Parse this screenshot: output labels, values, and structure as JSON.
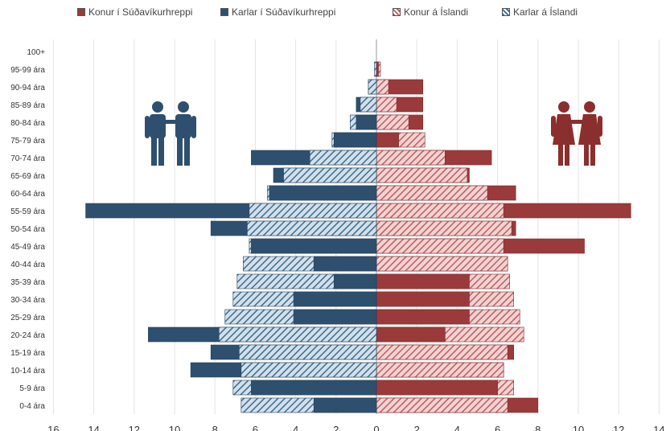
{
  "chart_data": {
    "type": "bar",
    "orientation": "horizontal-population-pyramid",
    "categories": [
      "0-4 ára",
      "5-9 ára",
      "10-14 ára",
      "15-19 ára",
      "20-24 ára",
      "25-29 ára",
      "30-34 ára",
      "35-39 ára",
      "40-44 ára",
      "45-49 ára",
      "50-54 ára",
      "55-59 ára",
      "60-64 ára",
      "65-69 ára",
      "70-74 ára",
      "75-79 ára",
      "80-84 ára",
      "85-89 ára",
      "90-94 ára",
      "95-99 ára",
      "100+"
    ],
    "series": [
      {
        "name": "Konur í Súðavíkurhreppi",
        "side": "right",
        "color": "#9b3a3a",
        "values": [
          8.0,
          6.0,
          6.3,
          6.8,
          3.4,
          4.6,
          4.6,
          4.6,
          6.5,
          10.3,
          6.9,
          12.6,
          6.9,
          4.6,
          5.7,
          1.1,
          2.3,
          2.3,
          2.3,
          0.1,
          0.0
        ]
      },
      {
        "name": "Karlar í Súðavíkurhreppi",
        "side": "left",
        "color": "#2f4f6f",
        "values": [
          3.1,
          6.2,
          9.2,
          8.2,
          11.3,
          4.1,
          4.1,
          2.1,
          3.1,
          6.2,
          8.2,
          14.4,
          5.3,
          5.1,
          6.2,
          2.1,
          1.0,
          1.0,
          0.4,
          0.0,
          0.0
        ]
      },
      {
        "name": "Konur á Íslandi",
        "side": "right",
        "color": "#c85a5a",
        "values": [
          6.5,
          6.8,
          6.3,
          6.5,
          7.3,
          7.1,
          6.8,
          6.6,
          6.5,
          6.3,
          6.7,
          6.3,
          5.5,
          4.5,
          3.4,
          2.4,
          1.6,
          1.0,
          0.6,
          0.2,
          0.0
        ]
      },
      {
        "name": "Karlar á Íslandi",
        "side": "left",
        "color": "#3d6b8f",
        "values": [
          6.7,
          7.1,
          6.7,
          6.8,
          7.8,
          7.5,
          7.1,
          6.9,
          6.6,
          6.3,
          6.4,
          6.3,
          5.4,
          4.6,
          3.3,
          2.2,
          1.3,
          0.8,
          0.4,
          0.1,
          0.0
        ]
      }
    ],
    "x_axis": {
      "ticks_left": [
        "16",
        "14",
        "12",
        "10",
        "8",
        "6",
        "4",
        "2",
        "0"
      ],
      "ticks_right": [
        "2",
        "4",
        "6",
        "8",
        "10",
        "12",
        "14"
      ],
      "range_left": 16,
      "range_right": 14
    },
    "grid": true,
    "legend_position": "top"
  },
  "legend": {
    "konur_sud": "Konur í Súðavíkurhreppi",
    "karlar_sud": "Karlar í Súðavíkurhreppi",
    "konur_isl": "Konur á Íslandi",
    "karlar_isl": "Karlar á Íslandi"
  },
  "icons": {
    "male": "male-couple-icon",
    "female": "female-couple-icon",
    "male_color": "#2f4f6f",
    "female_color": "#8b2e2e"
  }
}
